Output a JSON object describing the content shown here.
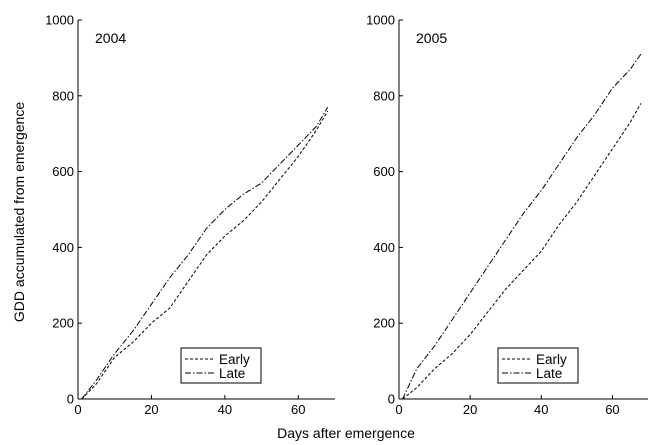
{
  "chart_data": [
    {
      "type": "line",
      "title": "2004",
      "xlabel": "Days after emergence",
      "ylabel": "GDD accumulated from emergence",
      "xlim": [
        0,
        70
      ],
      "ylim": [
        0,
        1000
      ],
      "xticks": [
        0,
        20,
        40,
        60
      ],
      "yticks": [
        0,
        200,
        400,
        600,
        800,
        1000
      ],
      "grid": false,
      "legend_position": "bottom-right",
      "series": [
        {
          "name": "Early",
          "style": "dashed",
          "x": [
            1,
            5,
            10,
            15,
            20,
            25,
            30,
            35,
            40,
            45,
            50,
            55,
            60,
            65,
            68
          ],
          "y": [
            0,
            40,
            110,
            150,
            200,
            240,
            310,
            380,
            430,
            470,
            520,
            580,
            640,
            710,
            760
          ]
        },
        {
          "name": "Late",
          "style": "dashdot",
          "x": [
            1,
            5,
            10,
            15,
            20,
            25,
            30,
            35,
            40,
            45,
            50,
            55,
            60,
            65,
            68
          ],
          "y": [
            0,
            50,
            120,
            180,
            250,
            320,
            380,
            450,
            500,
            540,
            570,
            620,
            670,
            720,
            770
          ]
        }
      ]
    },
    {
      "type": "line",
      "title": "2005",
      "xlabel": "Days after emergence",
      "ylabel": "",
      "xlim": [
        0,
        70
      ],
      "ylim": [
        0,
        1000
      ],
      "xticks": [
        0,
        20,
        40,
        60
      ],
      "yticks": [
        0,
        200,
        400,
        600,
        800,
        1000
      ],
      "grid": false,
      "legend_position": "bottom-right",
      "series": [
        {
          "name": "Early",
          "style": "dashed",
          "x": [
            1,
            5,
            10,
            15,
            20,
            25,
            30,
            35,
            40,
            45,
            50,
            55,
            60,
            65,
            68
          ],
          "y": [
            0,
            30,
            80,
            120,
            170,
            230,
            290,
            340,
            390,
            460,
            520,
            590,
            660,
            730,
            780
          ]
        },
        {
          "name": "Late",
          "style": "dashdot",
          "x": [
            1,
            5,
            10,
            15,
            20,
            25,
            30,
            35,
            40,
            45,
            50,
            55,
            60,
            65,
            68
          ],
          "y": [
            0,
            80,
            140,
            210,
            280,
            350,
            420,
            490,
            550,
            620,
            690,
            750,
            820,
            870,
            910
          ]
        }
      ]
    }
  ],
  "figure": {
    "xlabel": "Days after emergence",
    "ylabel": "GDD accumulated from emergence"
  },
  "colors": {
    "line": "#000000",
    "axis": "#000000",
    "background": "#ffffff"
  }
}
